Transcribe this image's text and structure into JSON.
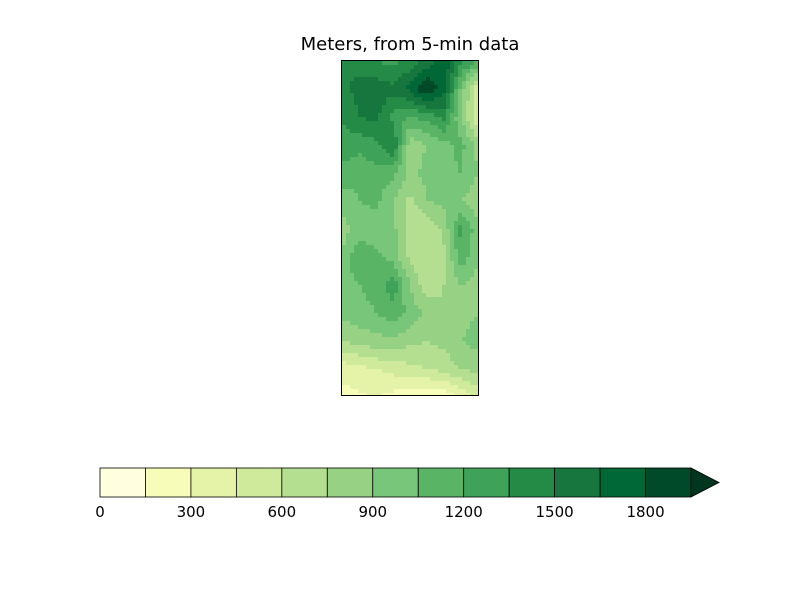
{
  "chart_data": {
    "type": "heatmap",
    "title": "Meters, from 5-min data",
    "xlabel": "",
    "ylabel": "",
    "colorbar": {
      "levels": [
        0,
        150,
        300,
        450,
        600,
        750,
        900,
        1050,
        1200,
        1350,
        1500,
        1650,
        1800,
        1950
      ],
      "tick_values": [
        0,
        300,
        600,
        900,
        1200,
        1500,
        1800
      ],
      "tick_labels": [
        "0",
        "300",
        "600",
        "900",
        "1200",
        "1500",
        "1800"
      ],
      "extend": "max",
      "colors": [
        "#ffffe0",
        "#f7fcb9",
        "#e4f3a8",
        "#d0ea9c",
        "#b4df91",
        "#97d284",
        "#78c679",
        "#5ab466",
        "#3fa259",
        "#238b45",
        "#16763e",
        "#006837",
        "#004a29"
      ],
      "extend_color": "#00361f"
    },
    "grid_values": [
      [
        1500,
        1450,
        1350,
        1300,
        1400,
        1550,
        1800,
        1400,
        1200
      ],
      [
        1450,
        1550,
        1600,
        1550,
        1700,
        1950,
        1700,
        1000,
        450
      ],
      [
        1350,
        1500,
        1550,
        1300,
        1200,
        1250,
        1400,
        900,
        450
      ],
      [
        1300,
        1250,
        1300,
        1500,
        800,
        900,
        1000,
        1100,
        850
      ],
      [
        1150,
        1100,
        1150,
        1100,
        850,
        950,
        1000,
        1050,
        900
      ],
      [
        950,
        1050,
        1100,
        900,
        700,
        900,
        950,
        900,
        800
      ],
      [
        850,
        950,
        950,
        950,
        650,
        600,
        800,
        1250,
        950
      ],
      [
        900,
        1200,
        1100,
        1000,
        700,
        650,
        700,
        1150,
        900
      ],
      [
        1000,
        1050,
        1100,
        1300,
        900,
        650,
        750,
        900,
        850
      ],
      [
        950,
        1000,
        1050,
        1150,
        1000,
        850,
        750,
        850,
        900
      ],
      [
        750,
        800,
        850,
        850,
        800,
        750,
        800,
        900,
        950
      ],
      [
        350,
        400,
        450,
        500,
        550,
        600,
        650,
        750,
        800
      ],
      [
        250,
        280,
        300,
        260,
        160,
        150,
        200,
        300,
        500
      ]
    ]
  }
}
